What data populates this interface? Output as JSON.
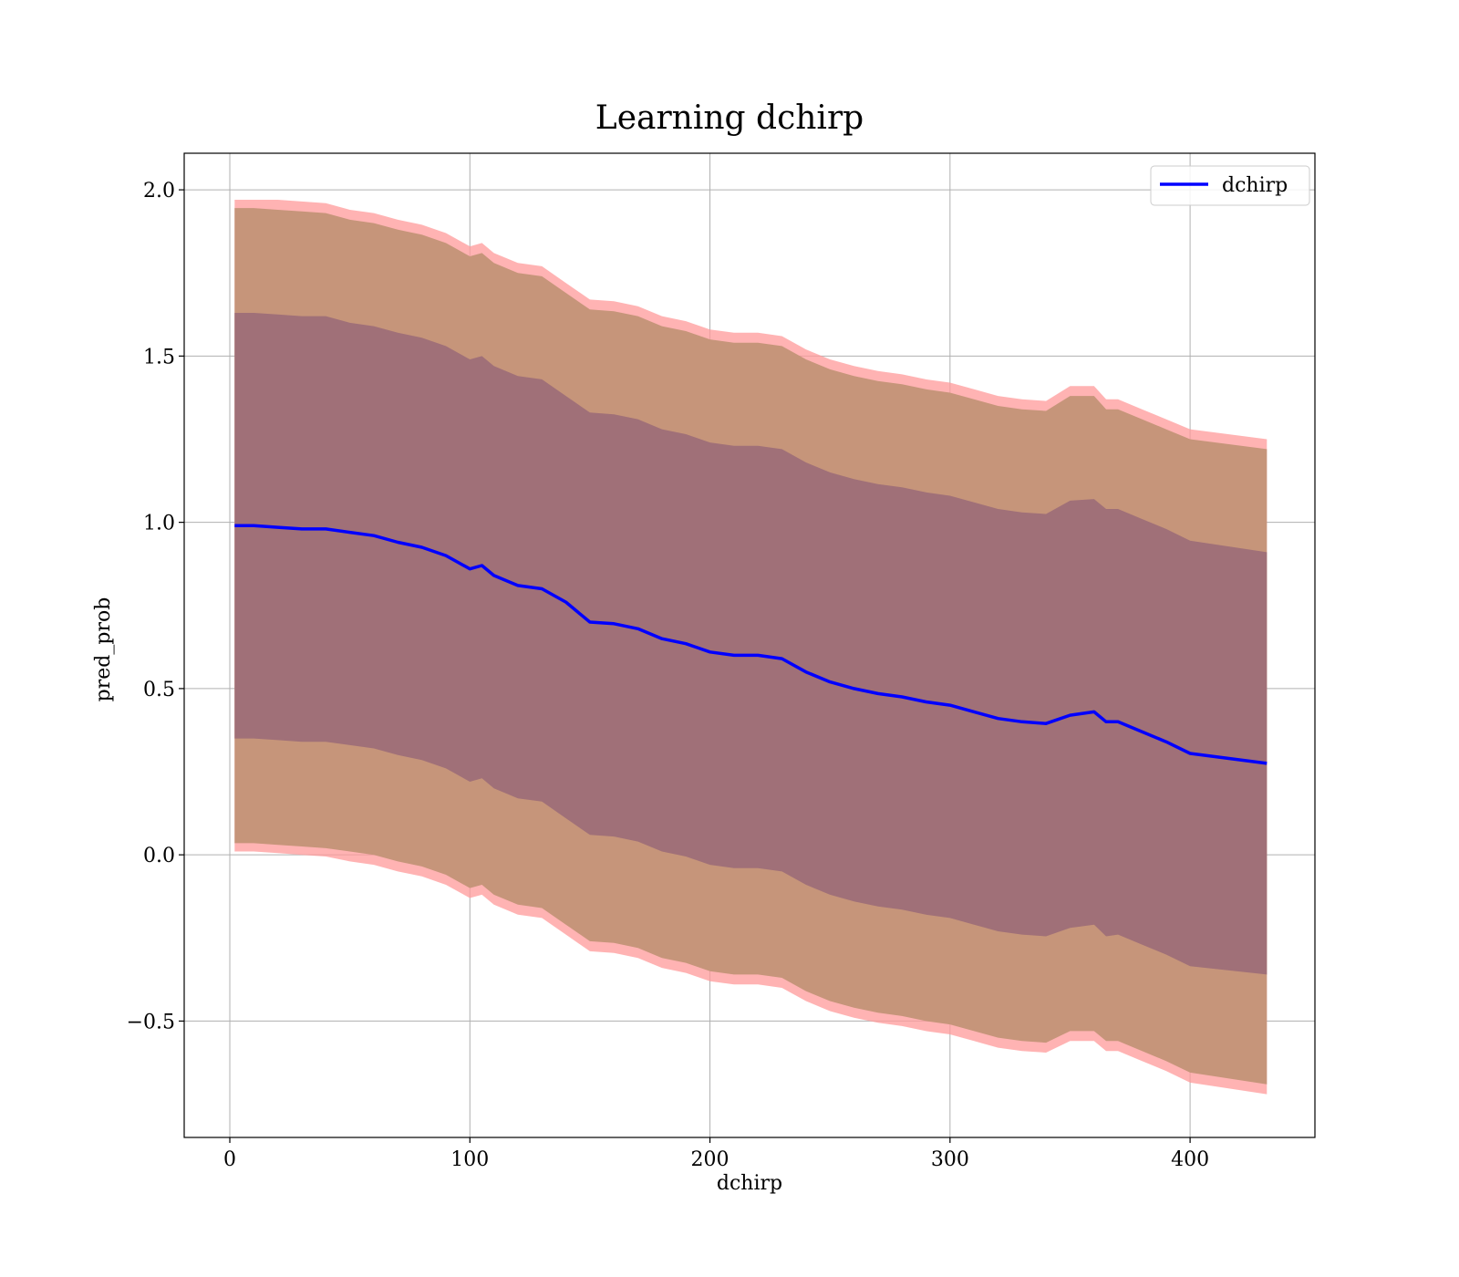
{
  "chart_data": {
    "type": "line",
    "title": "Learning dchirp",
    "xlabel": "dchirp",
    "ylabel": "pred_prob",
    "xlim": [
      -19,
      452
    ],
    "ylim": [
      -0.85,
      2.11
    ],
    "xticks": [
      0,
      100,
      200,
      300,
      400
    ],
    "xtick_labels": [
      "0",
      "100",
      "200",
      "300",
      "400"
    ],
    "yticks": [
      -0.5,
      0.0,
      0.5,
      1.0,
      1.5,
      2.0
    ],
    "ytick_labels": [
      "−0.5",
      "0.0",
      "0.5",
      "1.0",
      "1.5",
      "2.0"
    ],
    "grid": true,
    "legend": {
      "position": "top-right",
      "entries": [
        "dchirp"
      ]
    },
    "colors": {
      "line": "#0000ff",
      "outer_band": "#ff9999",
      "middle_band": "#c6957a",
      "inner_band": "#a07078",
      "grid": "#b0b0b0"
    },
    "series": [
      {
        "name": "dchirp",
        "x": [
          2,
          10,
          20,
          30,
          40,
          50,
          60,
          70,
          80,
          90,
          100,
          105,
          110,
          120,
          130,
          140,
          150,
          160,
          170,
          180,
          190,
          200,
          210,
          220,
          230,
          240,
          250,
          260,
          270,
          280,
          290,
          300,
          310,
          320,
          330,
          340,
          350,
          360,
          365,
          370,
          380,
          390,
          400,
          432
        ],
        "mean": [
          0.99,
          0.99,
          0.985,
          0.98,
          0.98,
          0.97,
          0.96,
          0.94,
          0.925,
          0.9,
          0.86,
          0.87,
          0.84,
          0.81,
          0.8,
          0.76,
          0.7,
          0.695,
          0.68,
          0.65,
          0.635,
          0.61,
          0.6,
          0.6,
          0.59,
          0.55,
          0.52,
          0.5,
          0.485,
          0.475,
          0.46,
          0.45,
          0.43,
          0.41,
          0.4,
          0.395,
          0.42,
          0.43,
          0.4,
          0.4,
          0.37,
          0.34,
          0.305,
          0.275
        ],
        "outer_upper": [
          1.97,
          1.97,
          1.97,
          1.965,
          1.96,
          1.94,
          1.93,
          1.91,
          1.895,
          1.87,
          1.83,
          1.84,
          1.81,
          1.78,
          1.77,
          1.72,
          1.67,
          1.665,
          1.65,
          1.62,
          1.605,
          1.58,
          1.57,
          1.57,
          1.56,
          1.52,
          1.49,
          1.47,
          1.455,
          1.445,
          1.43,
          1.42,
          1.4,
          1.38,
          1.37,
          1.365,
          1.41,
          1.41,
          1.37,
          1.37,
          1.34,
          1.31,
          1.28,
          1.25
        ],
        "mid_upper": [
          1.945,
          1.945,
          1.94,
          1.935,
          1.93,
          1.91,
          1.9,
          1.88,
          1.865,
          1.84,
          1.8,
          1.81,
          1.78,
          1.75,
          1.74,
          1.69,
          1.64,
          1.635,
          1.62,
          1.59,
          1.575,
          1.55,
          1.54,
          1.54,
          1.53,
          1.49,
          1.46,
          1.44,
          1.425,
          1.415,
          1.4,
          1.39,
          1.37,
          1.35,
          1.34,
          1.335,
          1.38,
          1.38,
          1.34,
          1.34,
          1.31,
          1.28,
          1.25,
          1.22
        ],
        "inner_upper": [
          1.63,
          1.63,
          1.625,
          1.62,
          1.62,
          1.6,
          1.59,
          1.57,
          1.555,
          1.53,
          1.49,
          1.5,
          1.47,
          1.44,
          1.43,
          1.38,
          1.33,
          1.325,
          1.31,
          1.28,
          1.265,
          1.24,
          1.23,
          1.23,
          1.22,
          1.18,
          1.15,
          1.13,
          1.115,
          1.105,
          1.09,
          1.08,
          1.06,
          1.04,
          1.03,
          1.025,
          1.065,
          1.07,
          1.04,
          1.04,
          1.01,
          0.98,
          0.945,
          0.91
        ],
        "inner_lower": [
          0.35,
          0.35,
          0.345,
          0.34,
          0.34,
          0.33,
          0.32,
          0.3,
          0.285,
          0.26,
          0.22,
          0.23,
          0.2,
          0.17,
          0.16,
          0.11,
          0.06,
          0.055,
          0.04,
          0.01,
          -0.005,
          -0.03,
          -0.04,
          -0.04,
          -0.05,
          -0.09,
          -0.12,
          -0.14,
          -0.155,
          -0.165,
          -0.18,
          -0.19,
          -0.21,
          -0.23,
          -0.24,
          -0.245,
          -0.22,
          -0.21,
          -0.245,
          -0.24,
          -0.27,
          -0.3,
          -0.335,
          -0.36
        ],
        "mid_lower": [
          0.035,
          0.035,
          0.03,
          0.025,
          0.02,
          0.01,
          0.0,
          -0.02,
          -0.035,
          -0.06,
          -0.1,
          -0.09,
          -0.12,
          -0.15,
          -0.16,
          -0.21,
          -0.26,
          -0.265,
          -0.28,
          -0.31,
          -0.325,
          -0.35,
          -0.36,
          -0.36,
          -0.37,
          -0.41,
          -0.44,
          -0.46,
          -0.475,
          -0.485,
          -0.5,
          -0.51,
          -0.53,
          -0.55,
          -0.56,
          -0.565,
          -0.53,
          -0.53,
          -0.56,
          -0.56,
          -0.59,
          -0.62,
          -0.655,
          -0.69
        ],
        "outer_lower": [
          0.01,
          0.01,
          0.005,
          0.0,
          -0.005,
          -0.02,
          -0.03,
          -0.05,
          -0.065,
          -0.09,
          -0.13,
          -0.12,
          -0.15,
          -0.18,
          -0.19,
          -0.24,
          -0.29,
          -0.295,
          -0.31,
          -0.34,
          -0.355,
          -0.38,
          -0.39,
          -0.39,
          -0.4,
          -0.44,
          -0.47,
          -0.49,
          -0.505,
          -0.515,
          -0.53,
          -0.54,
          -0.56,
          -0.58,
          -0.59,
          -0.595,
          -0.56,
          -0.56,
          -0.59,
          -0.59,
          -0.62,
          -0.65,
          -0.685,
          -0.72
        ]
      }
    ]
  }
}
